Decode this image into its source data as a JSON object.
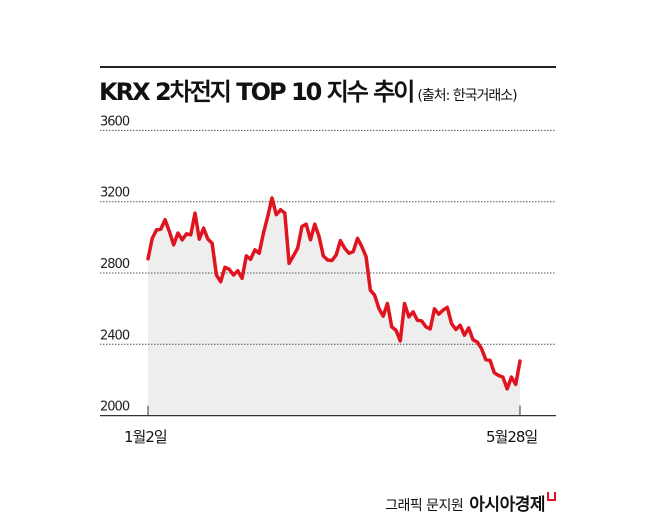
{
  "chart_data": {
    "type": "area",
    "title": "KRX 2차전지 TOP 10 지수 추이",
    "source": "(출처: 한국거래소)",
    "x_labels": [
      "1월2일",
      "5월28일"
    ],
    "y_ticks": [
      3600,
      3200,
      2800,
      2400,
      2000
    ],
    "ylim": [
      2000,
      3600
    ],
    "grid": true,
    "line_color": "#e0141e",
    "fill_color": "#eeeeee",
    "values": [
      2880,
      2995,
      3042,
      3046,
      3099,
      3033,
      2958,
      3024,
      2986,
      3020,
      3014,
      3136,
      2990,
      3052,
      2990,
      2967,
      2789,
      2751,
      2832,
      2821,
      2789,
      2813,
      2770,
      2896,
      2877,
      2930,
      2911,
      3024,
      3117,
      3221,
      3127,
      3155,
      3136,
      2854,
      2896,
      2939,
      3061,
      3074,
      2986,
      3074,
      3005,
      2896,
      2873,
      2870,
      2901,
      2982,
      2939,
      2911,
      2920,
      2995,
      2948,
      2892,
      2704,
      2676,
      2601,
      2558,
      2629,
      2498,
      2479,
      2419,
      2629,
      2554,
      2582,
      2535,
      2531,
      2498,
      2486,
      2599,
      2569,
      2592,
      2607,
      2516,
      2483,
      2507,
      2451,
      2492,
      2426,
      2413,
      2376,
      2314,
      2310,
      2240,
      2225,
      2216,
      2150,
      2216,
      2175,
      2306
    ]
  },
  "footer": {
    "credit": "그래픽 문지원",
    "brand": "아시아경제"
  }
}
